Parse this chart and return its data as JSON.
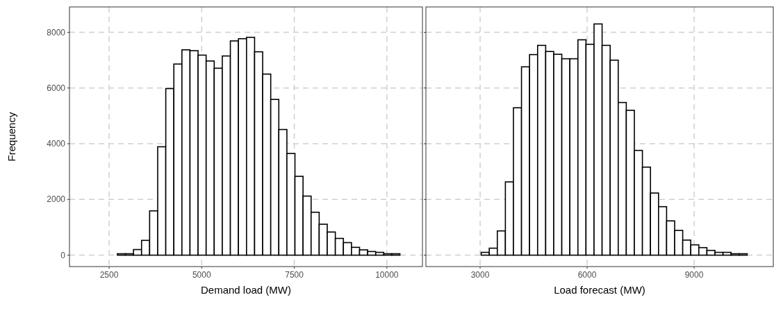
{
  "chart_data": [
    {
      "type": "histogram",
      "xlabel": "Demand load (MW)",
      "ylabel": "Frequency",
      "color": "#ffffff",
      "bins": [
        1850,
        2068,
        2286,
        2504,
        2722,
        2940,
        3158,
        3376,
        3594,
        3812,
        4030,
        4248,
        4466,
        4684,
        4902,
        5120,
        5338,
        5556,
        5774,
        5992,
        6210,
        6428,
        6646,
        6864,
        7082,
        7300,
        7518,
        7736,
        7954,
        8172,
        8390,
        8608,
        8826,
        9044,
        9262,
        9480,
        9698,
        9916,
        10134,
        10352,
        10570
      ],
      "values": [
        0,
        0,
        0,
        0,
        50,
        50,
        200,
        530,
        1590,
        3890,
        5980,
        6860,
        7370,
        7340,
        7180,
        6970,
        6710,
        7150,
        7690,
        7770,
        7820,
        7300,
        6500,
        5590,
        4510,
        3650,
        2830,
        2120,
        1540,
        1110,
        830,
        600,
        450,
        280,
        190,
        130,
        100,
        50,
        50,
        0
      ],
      "xlim": [
        1430,
        10960
      ],
      "xticks": [
        2500,
        5000,
        7500,
        10000
      ],
      "ylim": [
        -410,
        8910
      ],
      "yticks": [
        0,
        2000,
        4000,
        6000,
        8000
      ],
      "grid": true
    },
    {
      "type": "histogram",
      "xlabel": "Load forecast (MW)",
      "color": "#ffffff",
      "bins": [
        1900,
        2126,
        2352,
        2578,
        2804,
        3030,
        3256,
        3482,
        3708,
        3934,
        4160,
        4386,
        4612,
        4838,
        5064,
        5290,
        5516,
        5742,
        5968,
        6194,
        6420,
        6646,
        6872,
        7098,
        7324,
        7550,
        7776,
        8002,
        8228,
        8454,
        8680,
        8906,
        9132,
        9358,
        9584,
        9810,
        10036,
        10262,
        10488,
        10714,
        10940
      ],
      "values": [
        0,
        0,
        0,
        0,
        0,
        100,
        250,
        870,
        2630,
        5290,
        6760,
        7200,
        7530,
        7310,
        7210,
        7050,
        7050,
        7730,
        7570,
        8300,
        7530,
        7000,
        5480,
        5200,
        3760,
        3160,
        2230,
        1740,
        1230,
        890,
        540,
        370,
        270,
        170,
        100,
        100,
        50,
        50,
        0,
        0
      ],
      "xlim": [
        1480,
        11220
      ],
      "xticks": [
        3000,
        6000,
        9000
      ],
      "ylim": [
        -410,
        8910
      ],
      "yticks": [
        0,
        2000,
        4000,
        6000,
        8000
      ],
      "grid": true,
      "tick_labels": "x"
    }
  ]
}
